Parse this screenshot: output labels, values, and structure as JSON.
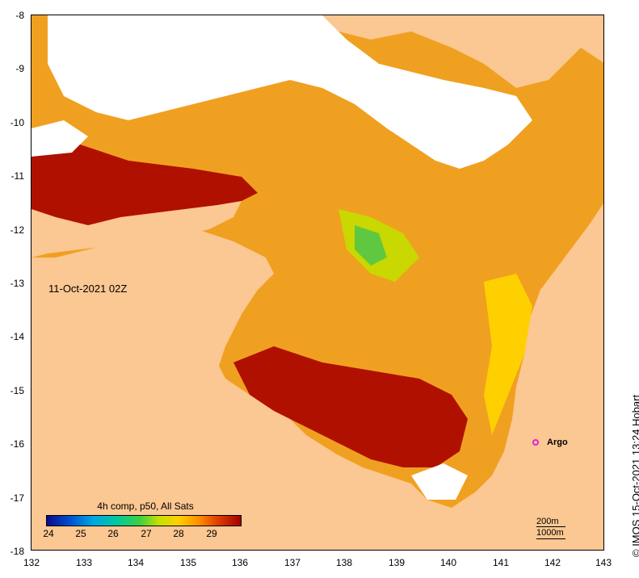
{
  "map": {
    "timestamp": "11-Oct-2021 02Z",
    "credit": "© IMOS 15-Oct-2021 13:24 Hobart",
    "lat_ticks": [
      "-8",
      "-9",
      "-10",
      "-11",
      "-12",
      "-13",
      "-14",
      "-15",
      "-16",
      "-17",
      "-18"
    ],
    "lon_ticks": [
      "132",
      "133",
      "134",
      "135",
      "136",
      "137",
      "138",
      "139",
      "140",
      "141",
      "142",
      "143"
    ],
    "lat_range": [
      -18,
      -8
    ],
    "lon_range": [
      132,
      143
    ],
    "legend": {
      "title": "4h comp, p50, All Sats",
      "labels": [
        "24",
        "25",
        "26",
        "27",
        "28",
        "29"
      ],
      "range": [
        24,
        30
      ]
    },
    "marker": {
      "label": "Argo",
      "lon": 141.7,
      "lat": -15.95,
      "color": "#e020e0"
    },
    "scale": {
      "label_1": "200m",
      "label_2": "1000m"
    },
    "colors": {
      "land": "#fbc792",
      "cloud": "#ffffff",
      "warm": "#a00000",
      "mid": "#ff9000",
      "cool": "#c8e000"
    }
  }
}
